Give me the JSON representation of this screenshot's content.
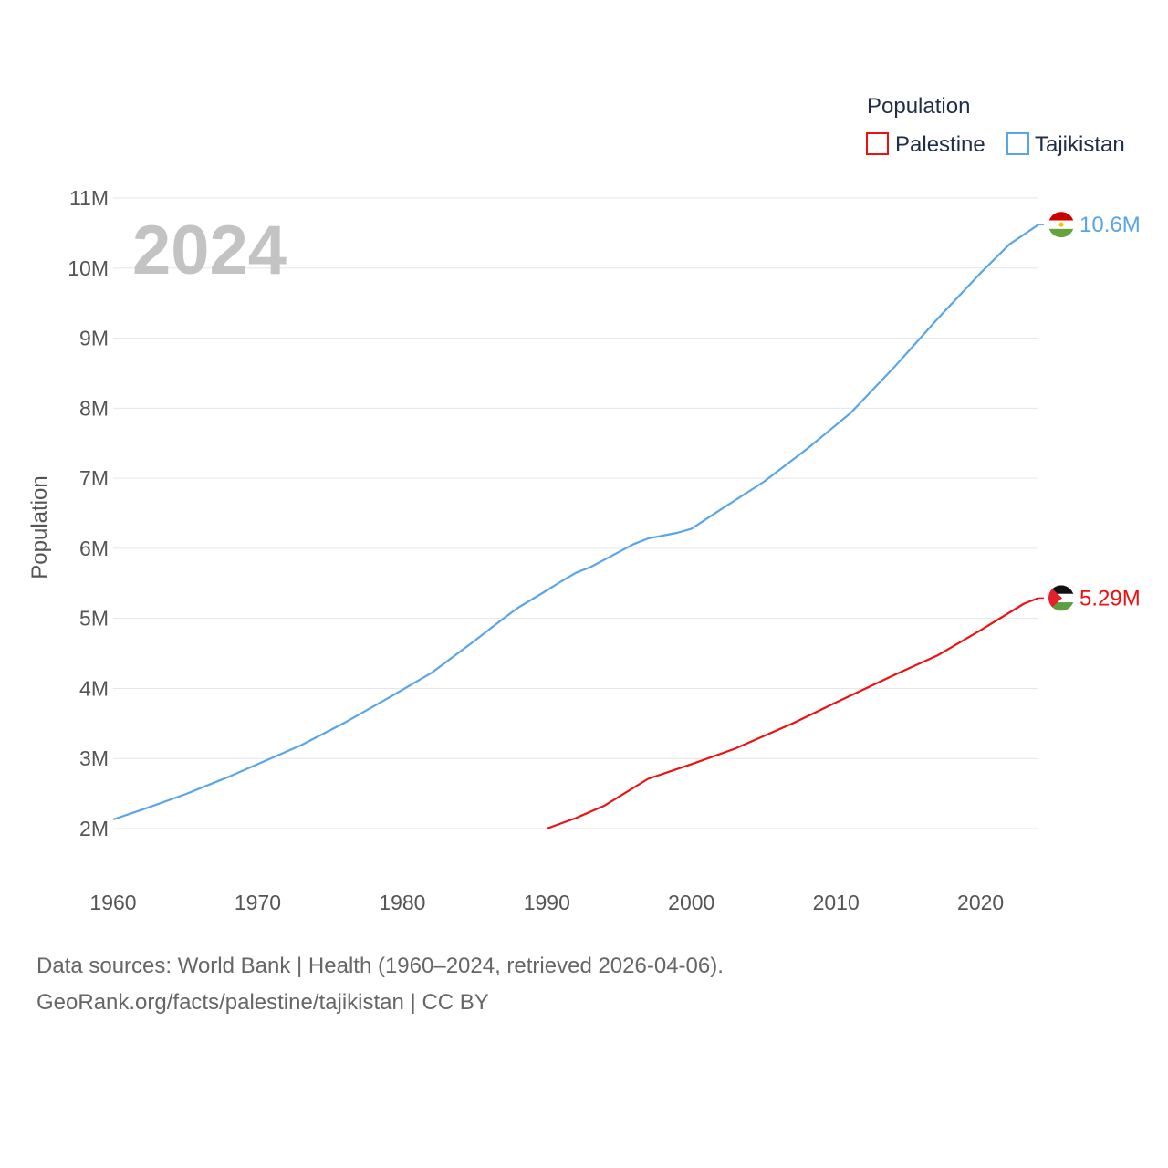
{
  "chart_data": {
    "type": "line",
    "year_label": "2024",
    "ylabel": "Population",
    "xlabel": "",
    "xlim": [
      1960,
      2024
    ],
    "ylim": [
      2000000,
      11000000
    ],
    "x_ticks": [
      1960,
      1970,
      1980,
      1990,
      2000,
      2010,
      2020
    ],
    "y_ticks": [
      {
        "value": 2000000,
        "label": "2M"
      },
      {
        "value": 3000000,
        "label": "3M"
      },
      {
        "value": 4000000,
        "label": "4M"
      },
      {
        "value": 5000000,
        "label": "5M"
      },
      {
        "value": 6000000,
        "label": "6M"
      },
      {
        "value": 7000000,
        "label": "7M"
      },
      {
        "value": 8000000,
        "label": "8M"
      },
      {
        "value": 9000000,
        "label": "9M"
      },
      {
        "value": 10000000,
        "label": "10M"
      },
      {
        "value": 11000000,
        "label": "11M"
      }
    ],
    "legend": {
      "title": "Population",
      "position": "top-right"
    },
    "series": [
      {
        "name": "Palestine",
        "color": "#ee1111",
        "end_label": "5.29M",
        "flag": "palestine-flag",
        "points": [
          [
            1990,
            2000000
          ],
          [
            1992,
            2150000
          ],
          [
            1994,
            2330000
          ],
          [
            1997,
            2710000
          ],
          [
            2000,
            2920000
          ],
          [
            2003,
            3140000
          ],
          [
            2007,
            3500000
          ],
          [
            2010,
            3800000
          ],
          [
            2014,
            4190000
          ],
          [
            2017,
            4470000
          ],
          [
            2020,
            4830000
          ],
          [
            2023,
            5210000
          ],
          [
            2024,
            5290000
          ]
        ]
      },
      {
        "name": "Tajikistan",
        "color": "#5aa5e6",
        "end_label": "10.6M",
        "flag": "tajikistan-flag",
        "points": [
          [
            1960,
            2130000
          ],
          [
            1962,
            2270000
          ],
          [
            1965,
            2490000
          ],
          [
            1968,
            2740000
          ],
          [
            1970,
            2920000
          ],
          [
            1973,
            3190000
          ],
          [
            1976,
            3510000
          ],
          [
            1979,
            3860000
          ],
          [
            1982,
            4220000
          ],
          [
            1985,
            4680000
          ],
          [
            1987,
            5000000
          ],
          [
            1988,
            5150000
          ],
          [
            1990,
            5400000
          ],
          [
            1991,
            5530000
          ],
          [
            1992,
            5650000
          ],
          [
            1993,
            5730000
          ],
          [
            1994,
            5840000
          ],
          [
            1996,
            6060000
          ],
          [
            1997,
            6140000
          ],
          [
            1999,
            6220000
          ],
          [
            2000,
            6280000
          ],
          [
            2002,
            6550000
          ],
          [
            2005,
            6950000
          ],
          [
            2008,
            7420000
          ],
          [
            2011,
            7930000
          ],
          [
            2014,
            8580000
          ],
          [
            2017,
            9270000
          ],
          [
            2020,
            9930000
          ],
          [
            2022,
            10340000
          ],
          [
            2024,
            10620000
          ]
        ]
      }
    ]
  },
  "footer": {
    "source_line": "Data sources: World Bank | Health (1960–2024, retrieved 2026-04-06).",
    "url_line": "GeoRank.org/facts/palestine/tajikistan | CC BY"
  }
}
